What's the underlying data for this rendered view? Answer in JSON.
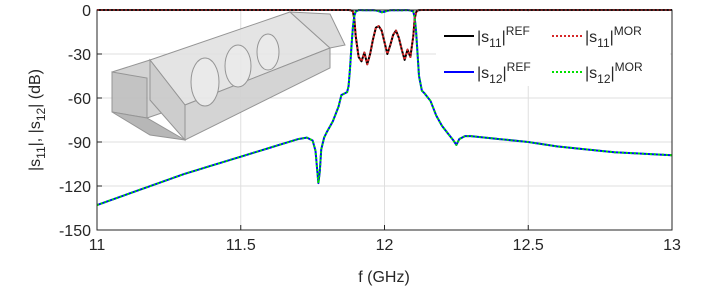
{
  "chart_data": {
    "type": "line",
    "xlabel": "f (GHz)",
    "ylabel": "|s11|, |s12| (dB)",
    "x": [
      11.0,
      11.1,
      11.2,
      11.3,
      11.4,
      11.5,
      11.6,
      11.65,
      11.7,
      11.73,
      11.75,
      11.76,
      11.77,
      11.775,
      11.78,
      11.79,
      11.8,
      11.82,
      11.84,
      11.85,
      11.86,
      11.87,
      11.875,
      11.88,
      11.885,
      11.89,
      11.895,
      11.9,
      11.91,
      11.92,
      11.93,
      11.94,
      11.95,
      11.96,
      11.97,
      11.98,
      11.99,
      12.0,
      12.01,
      12.02,
      12.03,
      12.04,
      12.05,
      12.06,
      12.07,
      12.08,
      12.09,
      12.1,
      12.105,
      12.11,
      12.115,
      12.12,
      12.13,
      12.14,
      12.16,
      12.18,
      12.2,
      12.22,
      12.24,
      12.25,
      12.26,
      12.28,
      12.3,
      12.4,
      12.5,
      12.6,
      12.7,
      12.8,
      12.9,
      13.0
    ],
    "series": [
      {
        "name": "|s11|REF",
        "color": "#000000",
        "dash": false,
        "values": [
          0,
          0,
          0,
          0,
          0,
          0,
          0,
          0,
          0,
          0,
          0,
          0,
          0,
          0,
          0,
          0,
          0,
          0,
          0,
          0,
          0,
          0,
          0,
          -0.1,
          -0.3,
          -1,
          -6,
          -18,
          -32,
          -35,
          -29,
          -37,
          -30,
          -20,
          -12,
          -11,
          -14,
          -22,
          -30,
          -24,
          -17,
          -14,
          -19,
          -27,
          -34,
          -27,
          -32,
          -18,
          -6,
          -1.5,
          -0.3,
          -0.1,
          0,
          0,
          0,
          0,
          0,
          0,
          0,
          0,
          0,
          0,
          0,
          0,
          0,
          0,
          0,
          0,
          0,
          0
        ]
      },
      {
        "name": "|s11|MOR",
        "color": "#d62728",
        "dash": true,
        "values": [
          0,
          0,
          0,
          0,
          0,
          0,
          0,
          0,
          0,
          0,
          0,
          0,
          0,
          0,
          0,
          0,
          0,
          0,
          0,
          0,
          0,
          0,
          0,
          -0.1,
          -0.3,
          -1,
          -6,
          -18,
          -32,
          -35,
          -29,
          -37,
          -30,
          -20,
          -12,
          -11,
          -14,
          -22,
          -30,
          -24,
          -17,
          -14,
          -19,
          -27,
          -34,
          -27,
          -32,
          -18,
          -6,
          -1.5,
          -0.3,
          -0.1,
          0,
          0,
          0,
          0,
          0,
          0,
          0,
          0,
          0,
          0,
          0,
          0,
          0,
          0,
          0,
          0,
          0,
          0
        ]
      },
      {
        "name": "|s12|REF",
        "color": "#0000ff",
        "dash": false,
        "values": [
          -133,
          -126,
          -119,
          -112,
          -106,
          -100,
          -94,
          -91,
          -88,
          -87,
          -89,
          -96,
          -118,
          -110,
          -95,
          -87,
          -83,
          -76,
          -66,
          -58,
          -57,
          -56,
          -52,
          -40,
          -25,
          -12,
          -4,
          -1,
          -0.1,
          -0.1,
          -0.2,
          -0.1,
          -0.2,
          -0.1,
          -0.3,
          -0.8,
          -1.5,
          -1.2,
          -0.5,
          -0.2,
          -0.1,
          -0.2,
          -0.1,
          -0.2,
          -0.1,
          -0.1,
          -0.3,
          -1,
          -5,
          -15,
          -30,
          -45,
          -55,
          -57,
          -62,
          -72,
          -79,
          -84,
          -89,
          -92,
          -88,
          -86,
          -86,
          -88,
          -90,
          -93,
          -95,
          -97,
          -98,
          -99
        ]
      },
      {
        "name": "|s12|MOR",
        "color": "#00e000",
        "dash": true,
        "values": [
          -133,
          -126,
          -119,
          -112,
          -106,
          -100,
          -94,
          -91,
          -88,
          -87,
          -89,
          -96,
          -118,
          -110,
          -95,
          -87,
          -83,
          -76,
          -66,
          -58,
          -57,
          -56,
          -52,
          -40,
          -25,
          -12,
          -4,
          -1,
          -0.1,
          -0.1,
          -0.2,
          -0.1,
          -0.2,
          -0.1,
          -0.3,
          -0.8,
          -1.5,
          -1.2,
          -0.5,
          -0.2,
          -0.1,
          -0.2,
          -0.1,
          -0.2,
          -0.1,
          -0.1,
          -0.3,
          -1,
          -5,
          -15,
          -30,
          -45,
          -55,
          -57,
          -62,
          -72,
          -79,
          -84,
          -89,
          -92,
          -88,
          -86,
          -86,
          -88,
          -90,
          -93,
          -95,
          -97,
          -98,
          -99
        ]
      }
    ],
    "xlim": [
      11,
      13
    ],
    "xticks": [
      11,
      11.5,
      12,
      12.5,
      13
    ],
    "ylim": [
      -150,
      0
    ],
    "yticks": [
      -150,
      -120,
      -90,
      -60,
      -30,
      0
    ],
    "grid": true,
    "legend": "upper right"
  }
}
